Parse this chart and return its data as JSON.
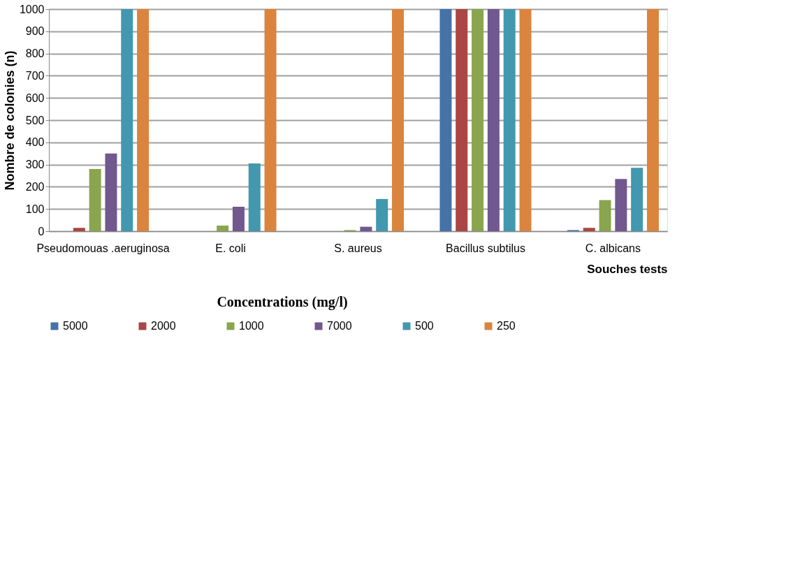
{
  "chart_data": {
    "type": "bar",
    "xlabel": "Souches tests",
    "ylabel": "Nombre de colonies (n)",
    "legend_title": "Concentrations (mg/l)",
    "categories": [
      "Pseudomouas .aeruginosa",
      "E. coli",
      "S. aureus",
      "Bacillus subtilus",
      "C. albicans"
    ],
    "series": [
      {
        "name": "5000",
        "color": "#4572a7",
        "values": [
          0,
          0,
          0,
          1000,
          5
        ]
      },
      {
        "name": "2000",
        "color": "#aa4643",
        "values": [
          15,
          0,
          0,
          1000,
          15
        ]
      },
      {
        "name": "1000",
        "color": "#89a54e",
        "values": [
          280,
          25,
          5,
          1000,
          140
        ]
      },
      {
        "name": "7000",
        "color": "#71588f",
        "values": [
          350,
          110,
          20,
          1000,
          235
        ]
      },
      {
        "name": "500",
        "color": "#4198af",
        "values": [
          1000,
          305,
          145,
          1000,
          285
        ]
      },
      {
        "name": "250",
        "color": "#db843d",
        "values": [
          1000,
          1000,
          1000,
          1000,
          1000
        ]
      }
    ],
    "ylim": [
      0,
      1000
    ],
    "yticks": [
      0,
      100,
      200,
      300,
      400,
      500,
      600,
      700,
      800,
      900,
      1000
    ],
    "grid": "y",
    "legend": "bottom"
  }
}
